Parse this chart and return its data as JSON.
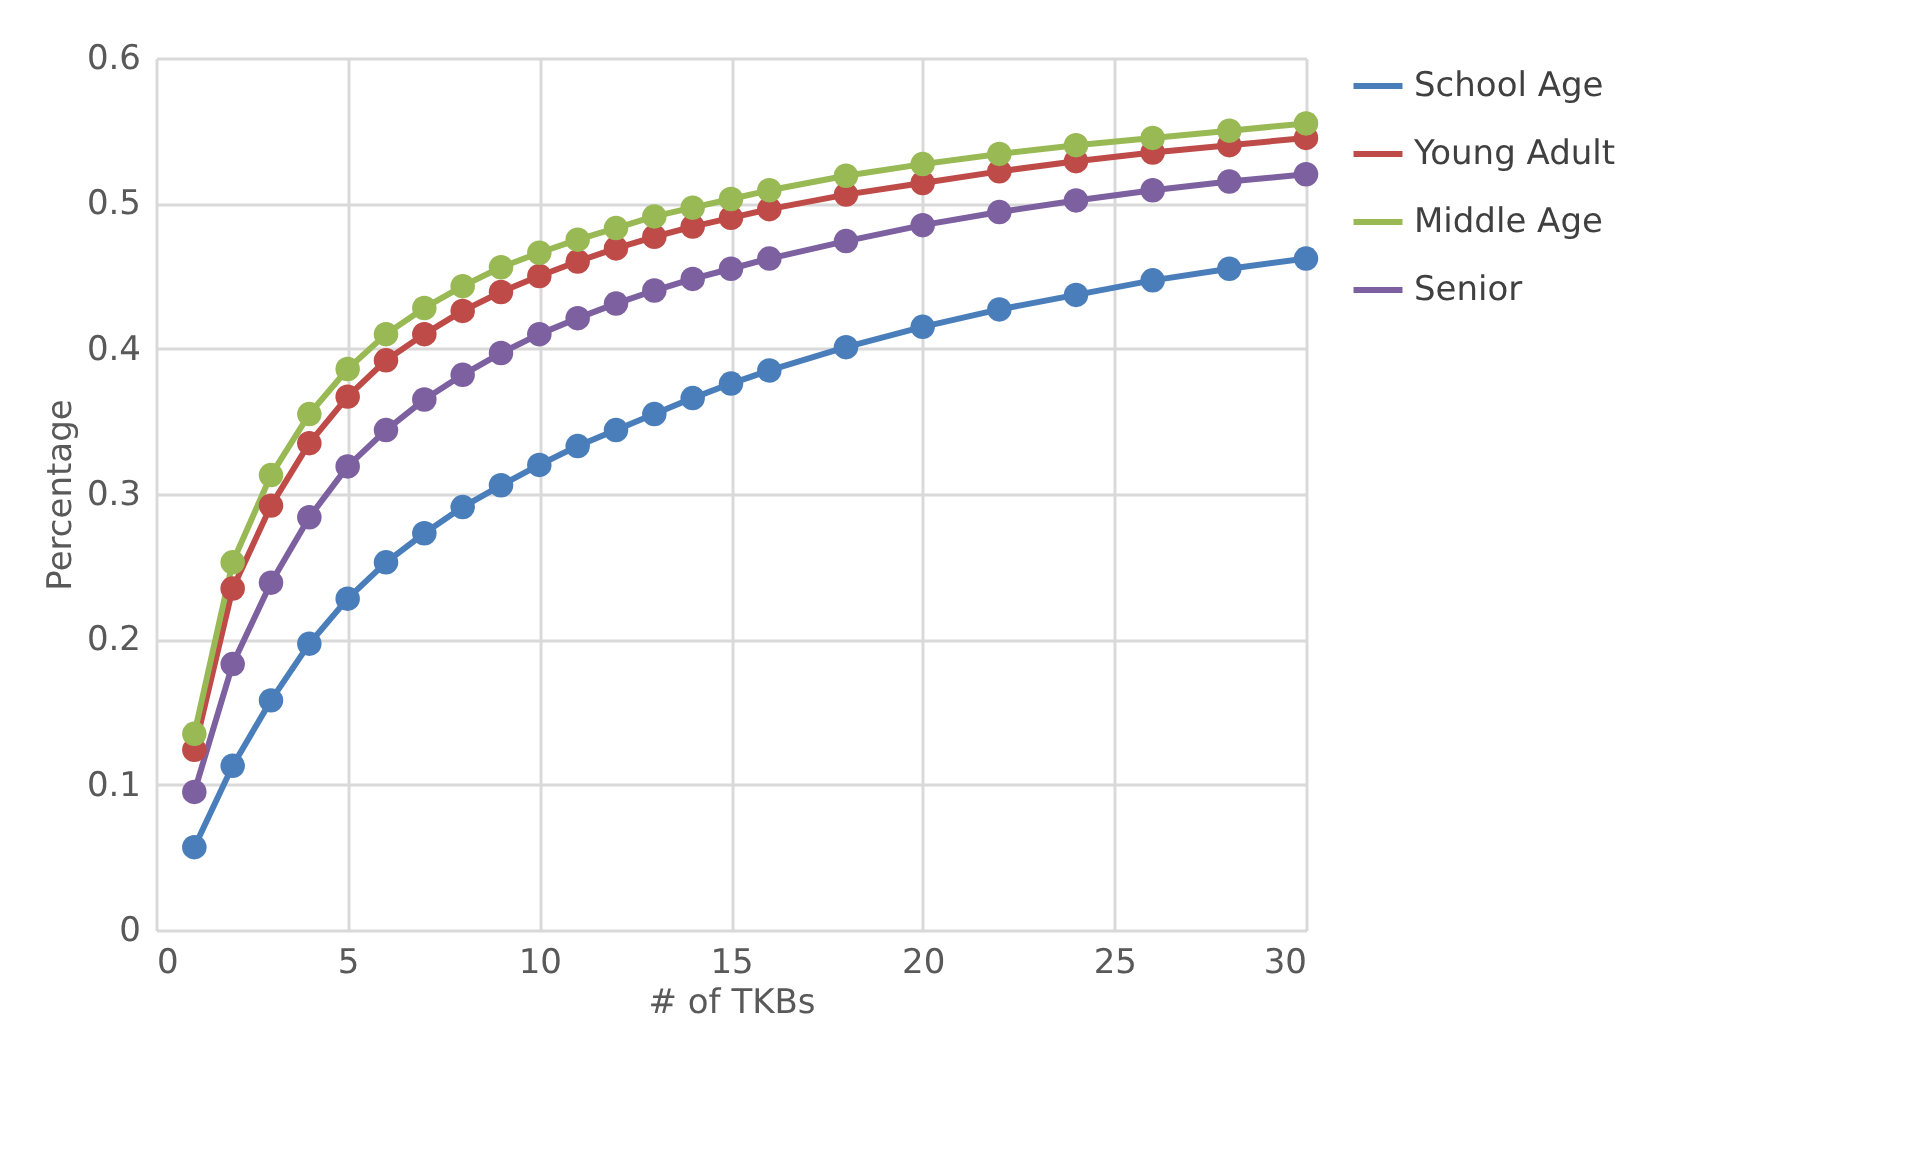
{
  "chart_data": {
    "type": "line",
    "xlabel": "# of TKBs",
    "ylabel": "Percentage",
    "x": [
      1,
      2,
      3,
      4,
      5,
      6,
      7,
      8,
      9,
      10,
      11,
      12,
      13,
      14,
      15,
      16,
      18,
      20,
      22,
      24,
      26,
      28,
      30
    ],
    "series": [
      {
        "name": "School Age",
        "color": "#4a7ebb",
        "values": [
          0.057,
          0.113,
          0.158,
          0.197,
          0.228,
          0.253,
          0.273,
          0.291,
          0.306,
          0.32,
          0.333,
          0.344,
          0.355,
          0.366,
          0.376,
          0.385,
          0.401,
          0.415,
          0.427,
          0.437,
          0.447,
          0.455,
          0.462
        ]
      },
      {
        "name": "Young Adult",
        "color": "#be4b48",
        "values": [
          0.124,
          0.235,
          0.292,
          0.335,
          0.367,
          0.392,
          0.41,
          0.426,
          0.439,
          0.45,
          0.46,
          0.469,
          0.477,
          0.484,
          0.49,
          0.496,
          0.506,
          0.514,
          0.522,
          0.529,
          0.535,
          0.54,
          0.545
        ]
      },
      {
        "name": "Middle Age",
        "color": "#98b954",
        "values": [
          0.135,
          0.253,
          0.313,
          0.355,
          0.386,
          0.41,
          0.428,
          0.443,
          0.456,
          0.466,
          0.475,
          0.483,
          0.491,
          0.497,
          0.503,
          0.509,
          0.519,
          0.527,
          0.534,
          0.54,
          0.545,
          0.55,
          0.555
        ]
      },
      {
        "name": "Senior",
        "color": "#7d60a0",
        "values": [
          0.095,
          0.183,
          0.239,
          0.284,
          0.319,
          0.344,
          0.365,
          0.382,
          0.397,
          0.41,
          0.421,
          0.431,
          0.44,
          0.448,
          0.455,
          0.462,
          0.474,
          0.485,
          0.494,
          0.502,
          0.509,
          0.515,
          0.52
        ]
      }
    ],
    "xlim": [
      0,
      30
    ],
    "xticks": [
      0,
      5,
      10,
      15,
      20,
      25,
      30
    ],
    "ylim": [
      0,
      0.6
    ],
    "yticks": [
      0,
      0.1,
      0.2,
      0.3,
      0.4,
      0.5,
      0.6
    ],
    "grid": true,
    "legend": "right",
    "marker": "circle",
    "line_style": "solid"
  }
}
